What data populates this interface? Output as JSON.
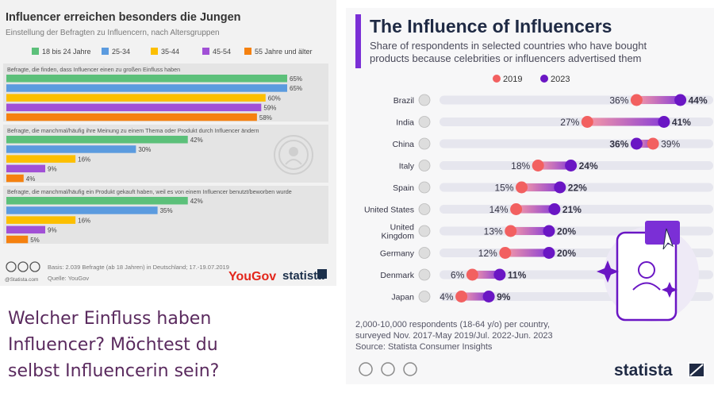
{
  "caption": {
    "line1": "Welcher Einfluss haben",
    "line2": "Influencer? Möchtest du",
    "line3": "selbst Influencerin sein?"
  },
  "left_chart": {
    "source_note": "Basis: 2.039 Befragte (ab 18 Jahren) in Deutschland; 17.-19.07.2019",
    "source": "Quelle: YouGov",
    "copyright": "@Statista.com",
    "logo_yougov": "YouGov",
    "logo_statista": "statista"
  },
  "right_chart": {
    "footnote1": "2,000-10,000 respondents (18-64 y/o) per country,",
    "footnote2": "surveyed Nov. 2017-May 2019/Jul. 2022-Jun. 2023",
    "source": "Source: Statista Consumer Insights",
    "logo": "statista"
  },
  "chart_data": [
    {
      "type": "bar",
      "title": "Influencer erreichen besonders die Jungen",
      "subtitle": "Einstellung der Befragten zu Influencern, nach Altersgruppen",
      "xlim": [
        0,
        65
      ],
      "value_suffix": "%",
      "series": [
        {
          "name": "18 bis 24 Jahre",
          "color": "#5cc07a"
        },
        {
          "name": "25-34",
          "color": "#5b9bdf"
        },
        {
          "name": "35-44",
          "color": "#fcbf00"
        },
        {
          "name": "45-54",
          "color": "#a150d6"
        },
        {
          "name": "55 Jahre und älter",
          "color": "#f5810f"
        }
      ],
      "categories": [
        "Befragte, die finden, dass Influencer einen zu großen Einfluss haben",
        "Befragte, die manchmal/häufig ihre Meinung zu einem Thema oder Produkt durch Influencer ändern",
        "Befragte, die manchmal/häufig ein Produkt gekauft haben, weil es von einem Influencer benutzt/beworben wurde"
      ],
      "values": [
        [
          65,
          65,
          60,
          59,
          58
        ],
        [
          42,
          30,
          16,
          9,
          4
        ],
        [
          42,
          35,
          16,
          9,
          5
        ]
      ]
    },
    {
      "type": "dumbbell",
      "title": "The Influence of Influencers",
      "subtitle_line1": "Share of respondents in selected countries who have bought",
      "subtitle_line2": "products because celebrities or influencers advertised them",
      "xlim": [
        0,
        50
      ],
      "value_suffix": "%",
      "series": [
        {
          "name": "2019",
          "color": "#f26060"
        },
        {
          "name": "2023",
          "color": "#6a16c4"
        }
      ],
      "categories": [
        "Brazil",
        "India",
        "China",
        "Italy",
        "Spain",
        "United States",
        "United Kingdom",
        "Germany",
        "Denmark",
        "Japan"
      ],
      "label_lines": [
        [
          "Brazil"
        ],
        [
          "India"
        ],
        [
          "China"
        ],
        [
          "Italy"
        ],
        [
          "Spain"
        ],
        [
          "United States"
        ],
        [
          "United",
          "Kingdom"
        ],
        [
          "Germany"
        ],
        [
          "Denmark"
        ],
        [
          "Japan"
        ]
      ],
      "values_2019": [
        36,
        27,
        39,
        18,
        15,
        14,
        13,
        12,
        6,
        4
      ],
      "values_2023": [
        44,
        41,
        36,
        24,
        22,
        21,
        20,
        20,
        11,
        9
      ]
    }
  ]
}
